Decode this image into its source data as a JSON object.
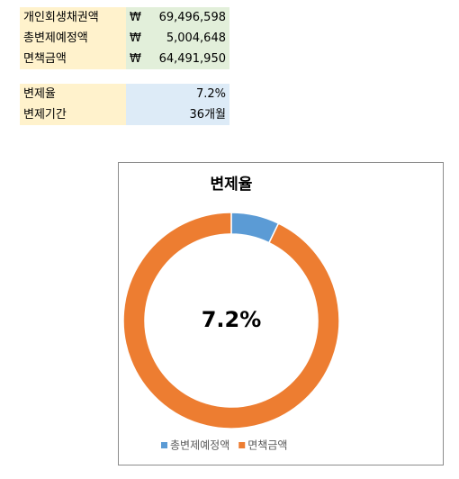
{
  "table1": {
    "rows": [
      [
        "개인회생채권액",
        "₩",
        "69,496,598"
      ],
      [
        "총변제예정액",
        "₩",
        "5,004,648"
      ],
      [
        "면책금액",
        "₩",
        "64,491,950"
      ]
    ]
  },
  "table2": {
    "rows": [
      [
        "변제율",
        "7.2%"
      ],
      [
        "변제기간",
        "36개월"
      ]
    ]
  },
  "chart_data": {
    "type": "donut",
    "title": "변제율",
    "center_label": "7.2%",
    "categories": [
      "총변제예정액",
      "면책금액"
    ],
    "values": [
      5004648,
      64491950
    ],
    "colors": [
      "#5b9bd5",
      "#ed7d31"
    ],
    "legend": "bottom"
  }
}
